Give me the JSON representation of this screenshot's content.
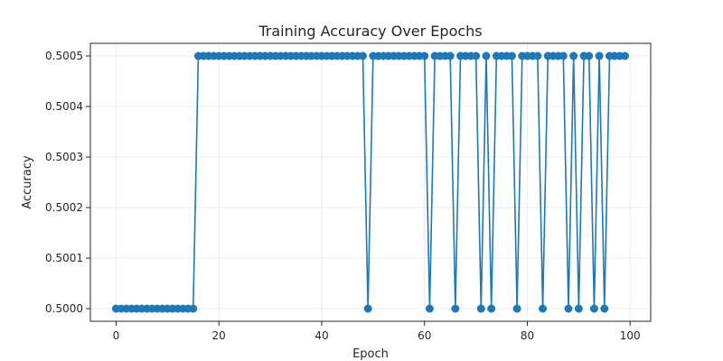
{
  "chart_data": {
    "type": "line",
    "title": "Training Accuracy Over Epochs",
    "xlabel": "Epoch",
    "ylabel": "Accuracy",
    "xlim": [
      -5,
      104
    ],
    "ylim": [
      0.499975,
      0.500525
    ],
    "xticks": [
      0,
      20,
      40,
      60,
      80,
      100
    ],
    "yticks": [
      0.5,
      0.5001,
      0.5002,
      0.5003,
      0.5004,
      0.5005
    ],
    "ytick_labels": [
      "0.5000",
      "0.5001",
      "0.5002",
      "0.5003",
      "0.5004",
      "0.5005"
    ],
    "grid": true,
    "series": [
      {
        "color": "#1f77b4",
        "marker": "circle",
        "x": [
          0,
          1,
          2,
          3,
          4,
          5,
          6,
          7,
          8,
          9,
          10,
          11,
          12,
          13,
          14,
          15,
          16,
          17,
          18,
          19,
          20,
          21,
          22,
          23,
          24,
          25,
          26,
          27,
          28,
          29,
          30,
          31,
          32,
          33,
          34,
          35,
          36,
          37,
          38,
          39,
          40,
          41,
          42,
          43,
          44,
          45,
          46,
          47,
          48,
          49,
          50,
          51,
          52,
          53,
          54,
          55,
          56,
          57,
          58,
          59,
          60,
          61,
          62,
          63,
          64,
          65,
          66,
          67,
          68,
          69,
          70,
          71,
          72,
          73,
          74,
          75,
          76,
          77,
          78,
          79,
          80,
          81,
          82,
          83,
          84,
          85,
          86,
          87,
          88,
          89,
          90,
          91,
          92,
          93,
          94,
          95,
          96,
          97,
          98,
          99
        ],
        "y": [
          0.5,
          0.5,
          0.5,
          0.5,
          0.5,
          0.5,
          0.5,
          0.5,
          0.5,
          0.5,
          0.5,
          0.5,
          0.5,
          0.5,
          0.5,
          0.5,
          0.5005,
          0.5005,
          0.5005,
          0.5005,
          0.5005,
          0.5005,
          0.5005,
          0.5005,
          0.5005,
          0.5005,
          0.5005,
          0.5005,
          0.5005,
          0.5005,
          0.5005,
          0.5005,
          0.5005,
          0.5005,
          0.5005,
          0.5005,
          0.5005,
          0.5005,
          0.5005,
          0.5005,
          0.5005,
          0.5005,
          0.5005,
          0.5005,
          0.5005,
          0.5005,
          0.5005,
          0.5005,
          0.5005,
          0.5,
          0.5005,
          0.5005,
          0.5005,
          0.5005,
          0.5005,
          0.5005,
          0.5005,
          0.5005,
          0.5005,
          0.5005,
          0.5005,
          0.5,
          0.5005,
          0.5005,
          0.5005,
          0.5005,
          0.5,
          0.5005,
          0.5005,
          0.5005,
          0.5005,
          0.5,
          0.5005,
          0.5,
          0.5005,
          0.5005,
          0.5005,
          0.5005,
          0.5,
          0.5005,
          0.5005,
          0.5005,
          0.5005,
          0.5,
          0.5005,
          0.5005,
          0.5005,
          0.5005,
          0.5,
          0.5005,
          0.5,
          0.5005,
          0.5005,
          0.5,
          0.5005,
          0.5,
          0.5005,
          0.5005,
          0.5005,
          0.5005
        ]
      }
    ]
  }
}
